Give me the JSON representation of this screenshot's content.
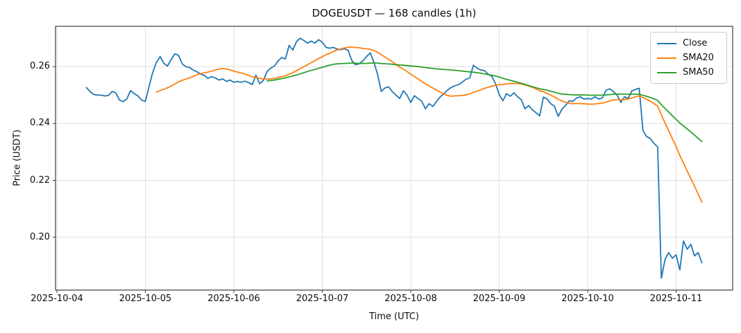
{
  "figure": {
    "background": "#ffffff"
  },
  "chart_data": {
    "type": "line",
    "title": "DOGEUSDT — 168 candles (1h)",
    "xlabel": "Time (UTC)",
    "ylabel": "Price (USDT)",
    "candle_count": 168,
    "interval": "1h",
    "grid": true,
    "grid_color": "#e0e0e0",
    "spine_color": "#3c3c3c",
    "tick_color": "#3c3c3c",
    "legend_position": "upper right",
    "x_tick_labels": [
      "2025-10-04",
      "2025-10-05",
      "2025-10-06",
      "2025-10-07",
      "2025-10-08",
      "2025-10-09",
      "2025-10-10",
      "2025-10-11"
    ],
    "x_tick_hours": [
      0,
      24,
      48,
      72,
      96,
      120,
      144,
      168
    ],
    "y_ticks": [
      0.2,
      0.22,
      0.24,
      0.26
    ],
    "y_tick_labels": [
      "0.20",
      "0.22",
      "0.24",
      "0.26"
    ],
    "xlim_hours": [
      -0.38,
      183.35
    ],
    "ylim": [
      0.1814,
      0.2742
    ],
    "start_hour_offset": 8,
    "hours_per_candle": 1,
    "series": [
      {
        "name": "Close",
        "color": "#1f77b4",
        "kind": "raw",
        "values": [
          0.2527,
          0.2512,
          0.2502,
          0.25,
          0.25,
          0.2497,
          0.2499,
          0.2513,
          0.2508,
          0.2482,
          0.2477,
          0.2487,
          0.2516,
          0.2505,
          0.2497,
          0.2482,
          0.2478,
          0.253,
          0.258,
          0.2615,
          0.2635,
          0.2612,
          0.2602,
          0.2625,
          0.2645,
          0.264,
          0.261,
          0.26,
          0.2597,
          0.2588,
          0.2582,
          0.2574,
          0.2569,
          0.2559,
          0.2565,
          0.256,
          0.2553,
          0.2557,
          0.2548,
          0.2553,
          0.2545,
          0.2548,
          0.2545,
          0.2549,
          0.2544,
          0.2537,
          0.257,
          0.254,
          0.2551,
          0.2583,
          0.2595,
          0.2602,
          0.262,
          0.2632,
          0.2627,
          0.2675,
          0.2658,
          0.2688,
          0.27,
          0.2692,
          0.2683,
          0.269,
          0.2683,
          0.2695,
          0.2686,
          0.2668,
          0.2665,
          0.2668,
          0.2662,
          0.266,
          0.2663,
          0.2658,
          0.2622,
          0.2607,
          0.261,
          0.262,
          0.2635,
          0.2649,
          0.2615,
          0.2573,
          0.2513,
          0.2525,
          0.2529,
          0.2512,
          0.25,
          0.2488,
          0.2515,
          0.25,
          0.2474,
          0.2498,
          0.2488,
          0.2478,
          0.2452,
          0.247,
          0.246,
          0.2478,
          0.2494,
          0.2505,
          0.2518,
          0.2527,
          0.2533,
          0.2537,
          0.2546,
          0.2556,
          0.256,
          0.2605,
          0.2595,
          0.2588,
          0.2586,
          0.2574,
          0.2566,
          0.254,
          0.2502,
          0.248,
          0.2505,
          0.2496,
          0.2508,
          0.2494,
          0.2484,
          0.2452,
          0.2463,
          0.2448,
          0.2438,
          0.2427,
          0.2493,
          0.2486,
          0.247,
          0.2461,
          0.2425,
          0.245,
          0.2463,
          0.248,
          0.2478,
          0.249,
          0.2494,
          0.2486,
          0.2488,
          0.2486,
          0.2494,
          0.2486,
          0.249,
          0.2517,
          0.2522,
          0.2512,
          0.25,
          0.2474,
          0.2494,
          0.2488,
          0.2515,
          0.252,
          0.2524,
          0.2376,
          0.2354,
          0.2347,
          0.233,
          0.2318,
          0.1856,
          0.1922,
          0.1946,
          0.1926,
          0.1938,
          0.1885,
          0.1987,
          0.1958,
          0.1975,
          0.1934,
          0.1946,
          0.191
        ]
      },
      {
        "name": "SMA20",
        "color": "#ff7f0e",
        "kind": "sma",
        "window": 20,
        "source": "Close"
      },
      {
        "name": "SMA50",
        "color": "#2ca02c",
        "kind": "sma",
        "window": 50,
        "source": "Close"
      }
    ]
  }
}
